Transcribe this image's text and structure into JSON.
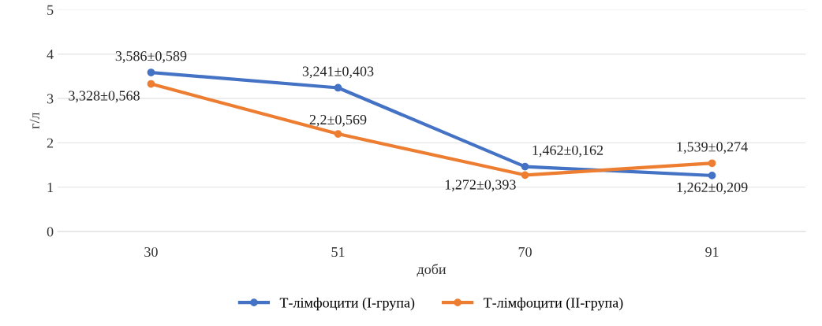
{
  "chart_data": {
    "type": "line",
    "xlabel": "доби",
    "ylabel": "г/л",
    "categories": [
      "30",
      "51",
      "70",
      "91"
    ],
    "series": [
      {
        "name": "Т-лімфоцити (І-група)",
        "color": "#4472c4",
        "values": [
          3.586,
          3.241,
          1.462,
          1.262
        ],
        "value_labels": [
          "3,586±0,589",
          "3,241±0,403",
          "1,462±0,162",
          "1,262±0,209"
        ]
      },
      {
        "name": "Т-лімфоцити (ІІ-група)",
        "color": "#ed7d31",
        "values": [
          3.328,
          2.2,
          1.272,
          1.539
        ],
        "value_labels": [
          "3,328±0,568",
          "2,2±0,569",
          "1,272±0,393",
          "1,539±0,274"
        ]
      }
    ],
    "ylim": [
      0,
      5
    ],
    "yticks": [
      0,
      1,
      2,
      3,
      4,
      5
    ],
    "grid": "y",
    "legend": "bottom",
    "marker": "circle",
    "line_style": "solid"
  }
}
